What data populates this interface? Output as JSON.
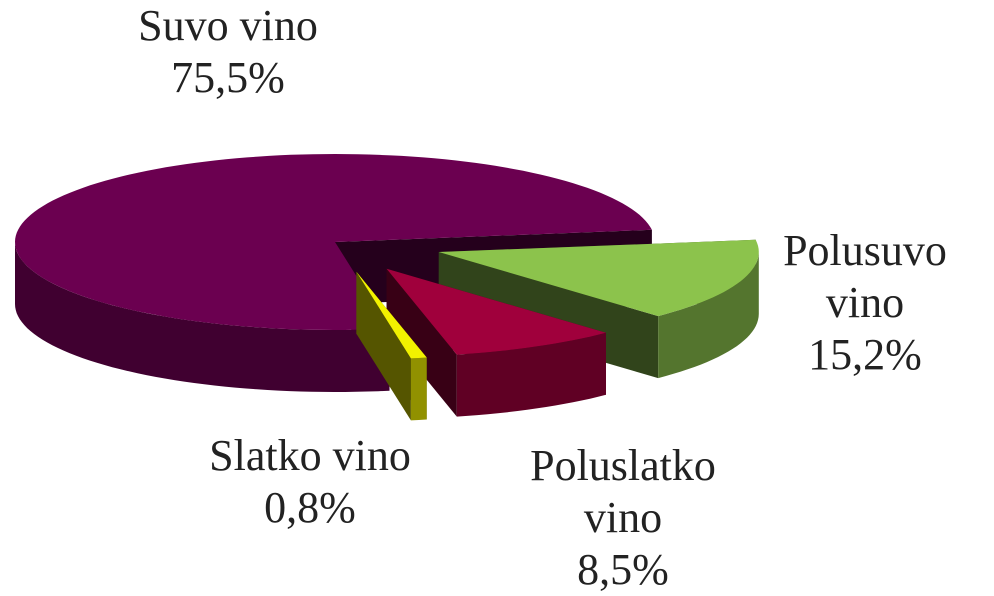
{
  "chart_data": {
    "type": "pie",
    "categories": [
      "Suvo vino",
      "Polusuvo vino",
      "Poluslatko vino",
      "Slatko vino"
    ],
    "values": [
      75.5,
      15.2,
      8.5,
      0.8
    ],
    "value_labels": [
      "75,5%",
      "15,2%",
      "8,5%",
      "0,8%"
    ],
    "colors": [
      "#6b0050",
      "#8cc34c",
      "#a0003c",
      "#f2f200"
    ],
    "three_d": true,
    "exploded": true
  }
}
